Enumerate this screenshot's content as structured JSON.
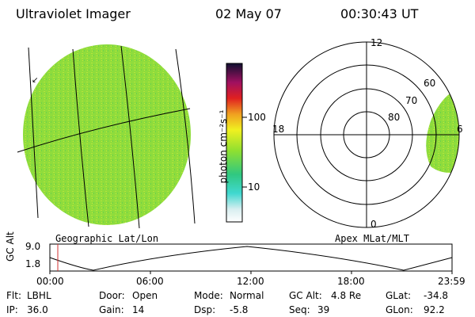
{
  "header": {
    "title": "Ultraviolet Imager",
    "date": "02 May 07",
    "time": "00:30:43 UT"
  },
  "colorbar": {
    "unit_label": "photon cm⁻²s⁻¹",
    "ticks": [
      "100",
      "10"
    ],
    "scale": "log"
  },
  "geo_panel": {
    "label": "Geographic Lat/Lon"
  },
  "polar_panel": {
    "label": "Apex MLat/MLT",
    "mlt_labels": [
      "12",
      "18",
      "6",
      "0"
    ],
    "lat_labels": [
      "60",
      "70",
      "80"
    ]
  },
  "altitude_plot": {
    "ylabel": "GC Alt",
    "y_ticks": [
      "9.0",
      "1.8"
    ],
    "x_ticks": [
      "00:00",
      "06:00",
      "12:00",
      "18:00",
      "23:59"
    ]
  },
  "info": {
    "flt_label": "Flt:",
    "flt_value": "LBHL",
    "ip_label": "IP:",
    "ip_value": "36.0",
    "door_label": "Door:",
    "door_value": "Open",
    "gain_label": "Gain:",
    "gain_value": "14",
    "mode_label": "Mode:",
    "mode_value": "Normal",
    "dsp_label": "Dsp:",
    "dsp_value": "-5.8",
    "gcalt_label": "GC Alt:",
    "gcalt_value": "4.8 Re",
    "seq_label": "Seq:",
    "seq_value": "39",
    "glat_label": "GLat:",
    "glat_value": "-34.8",
    "glon_label": "GLon:",
    "glon_value": "92.2"
  },
  "colors": {
    "image_fill": "#8fdc3c",
    "image_speckle": "#c8e83a",
    "marker": "#d03030"
  }
}
